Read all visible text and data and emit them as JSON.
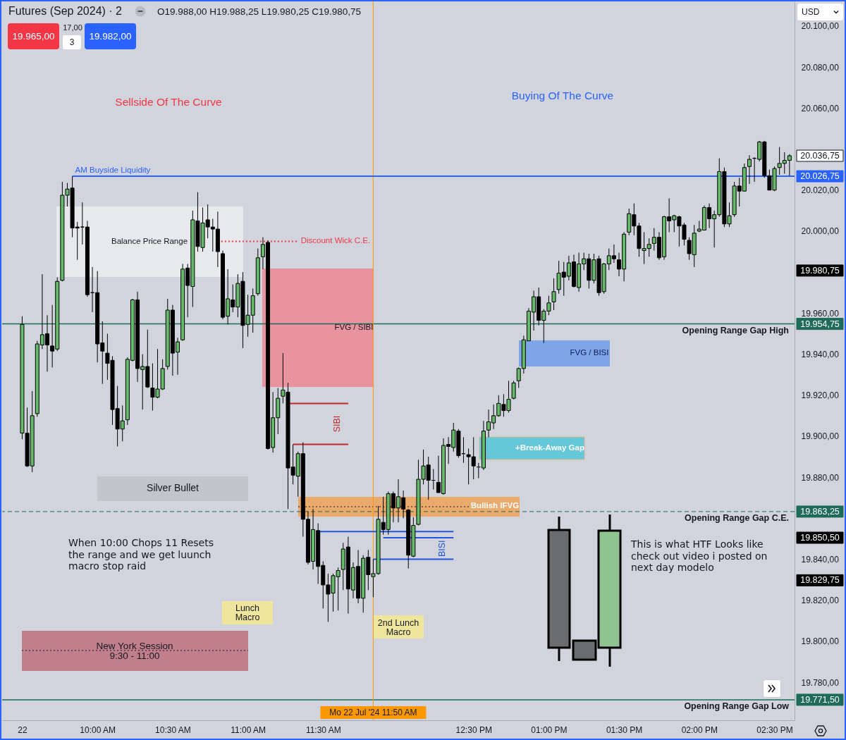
{
  "chart_data": {
    "type": "candlestick",
    "title": "Futures (Sep 2024) · 2",
    "subtitle": "O19.988,00 H19.988,25 L19.980,25 C19.980,75",
    "x": [
      "2024-07-22T09:30",
      "2024-07-22T09:32",
      "2024-07-22T09:34",
      "2024-07-22T09:36",
      "2024-07-22T09:38",
      "2024-07-22T09:40",
      "2024-07-22T09:42",
      "2024-07-22T09:44",
      "2024-07-22T09:46",
      "2024-07-22T09:48",
      "2024-07-22T09:50",
      "2024-07-22T09:52",
      "2024-07-22T09:54",
      "2024-07-22T09:56",
      "2024-07-22T09:58",
      "2024-07-22T10:00",
      "2024-07-22T10:02",
      "2024-07-22T10:04",
      "2024-07-22T10:06",
      "2024-07-22T10:08",
      "2024-07-22T10:10",
      "2024-07-22T10:12",
      "2024-07-22T10:14",
      "2024-07-22T10:16",
      "2024-07-22T10:18",
      "2024-07-22T10:20",
      "2024-07-22T10:22",
      "2024-07-22T10:24",
      "2024-07-22T10:26",
      "2024-07-22T10:28",
      "2024-07-22T10:30",
      "2024-07-22T10:32",
      "2024-07-22T10:34",
      "2024-07-22T10:36",
      "2024-07-22T10:38",
      "2024-07-22T10:40",
      "2024-07-22T10:42",
      "2024-07-22T10:44",
      "2024-07-22T10:46",
      "2024-07-22T10:48",
      "2024-07-22T10:50",
      "2024-07-22T10:52",
      "2024-07-22T10:54",
      "2024-07-22T10:56",
      "2024-07-22T10:58",
      "2024-07-22T11:00",
      "2024-07-22T11:02",
      "2024-07-22T11:04",
      "2024-07-22T11:06",
      "2024-07-22T11:08",
      "2024-07-22T11:10",
      "2024-07-22T11:12",
      "2024-07-22T11:14",
      "2024-07-22T11:16",
      "2024-07-22T11:18",
      "2024-07-22T11:20",
      "2024-07-22T11:22",
      "2024-07-22T11:24",
      "2024-07-22T11:26",
      "2024-07-22T11:28",
      "2024-07-22T11:30",
      "2024-07-22T11:32",
      "2024-07-22T11:34",
      "2024-07-22T11:36",
      "2024-07-22T11:38",
      "2024-07-22T11:40",
      "2024-07-22T11:42",
      "2024-07-22T11:44",
      "2024-07-22T11:46",
      "2024-07-22T11:48",
      "2024-07-22T11:50",
      "2024-07-22T11:52",
      "2024-07-22T11:54",
      "2024-07-22T11:56",
      "2024-07-22T11:58",
      "2024-07-22T12:00",
      "2024-07-22T12:02",
      "2024-07-22T12:04",
      "2024-07-22T12:06",
      "2024-07-22T12:08",
      "2024-07-22T12:10",
      "2024-07-22T12:12",
      "2024-07-22T12:14",
      "2024-07-22T12:16",
      "2024-07-22T12:18",
      "2024-07-22T12:20",
      "2024-07-22T12:22",
      "2024-07-22T12:24",
      "2024-07-22T12:26",
      "2024-07-22T12:28",
      "2024-07-22T12:30",
      "2024-07-22T12:32",
      "2024-07-22T12:34",
      "2024-07-22T12:36",
      "2024-07-22T12:38",
      "2024-07-22T12:40",
      "2024-07-22T12:42",
      "2024-07-22T12:44",
      "2024-07-22T12:46",
      "2024-07-22T12:48",
      "2024-07-22T12:50",
      "2024-07-22T12:52",
      "2024-07-22T12:54",
      "2024-07-22T12:56",
      "2024-07-22T12:58",
      "2024-07-22T13:00",
      "2024-07-22T13:02",
      "2024-07-22T13:04",
      "2024-07-22T13:06",
      "2024-07-22T13:08",
      "2024-07-22T13:10",
      "2024-07-22T13:12",
      "2024-07-22T13:14",
      "2024-07-22T13:16",
      "2024-07-22T13:18",
      "2024-07-22T13:20",
      "2024-07-22T13:22",
      "2024-07-22T13:24",
      "2024-07-22T13:26",
      "2024-07-22T13:28",
      "2024-07-22T13:30",
      "2024-07-22T13:32",
      "2024-07-22T13:34",
      "2024-07-22T13:36",
      "2024-07-22T13:38",
      "2024-07-22T13:40",
      "2024-07-22T13:42",
      "2024-07-22T13:44",
      "2024-07-22T13:46",
      "2024-07-22T13:48",
      "2024-07-22T13:50",
      "2024-07-22T13:52",
      "2024-07-22T13:54",
      "2024-07-22T13:56",
      "2024-07-22T13:58",
      "2024-07-22T14:00",
      "2024-07-22T14:02",
      "2024-07-22T14:04",
      "2024-07-22T14:06",
      "2024-07-22T14:08",
      "2024-07-22T14:10",
      "2024-07-22T14:12",
      "2024-07-22T14:14",
      "2024-07-22T14:16",
      "2024-07-22T14:18",
      "2024-07-22T14:20",
      "2024-07-22T14:22",
      "2024-07-22T14:24",
      "2024-07-22T14:26",
      "2024-07-22T14:28",
      "2024-07-22T14:30",
      "2024-07-22T14:32",
      "2024-07-22T14:34",
      "2024-07-22T14:36"
    ],
    "ohlc": [
      [
        19901.5,
        19958.5,
        19898.5,
        19954.5
      ],
      [
        19901.5,
        19914,
        19885,
        19885.5
      ],
      [
        19885.5,
        19922,
        19882.5,
        19910
      ],
      [
        19911,
        19946.5,
        19909.5,
        19945
      ],
      [
        19944.5,
        19979,
        19942.5,
        19949.5
      ],
      [
        19950,
        19959,
        19931.5,
        19944.5
      ],
      [
        19944,
        19964,
        19933.5,
        19941.5
      ],
      [
        19942.5,
        19977.5,
        19941.5,
        19975.5
      ],
      [
        19976,
        20024,
        19975.5,
        20017.5
      ],
      [
        20017.5,
        20023.5,
        20012,
        20020.5
      ],
      [
        20021,
        20026.75,
        19997,
        20001.5
      ],
      [
        20002,
        20004.5,
        19986,
        20001.5
      ],
      [
        20002,
        20014,
        19993.5,
        20002
      ],
      [
        20002,
        20005,
        19968,
        19969
      ],
      [
        19970,
        19982.5,
        19960.5,
        19970
      ],
      [
        19970,
        19980.5,
        19936,
        19945
      ],
      [
        19945.5,
        19956,
        19925.5,
        19941.5
      ],
      [
        19940.5,
        19950,
        19927.5,
        19935.5
      ],
      [
        19937,
        19939,
        19905.5,
        19913
      ],
      [
        19913.5,
        19924.5,
        19895,
        19903.5
      ],
      [
        19903.5,
        19915,
        19897.5,
        19907.5
      ],
      [
        19908,
        19938.5,
        19905.5,
        19937.5
      ],
      [
        19937,
        19967,
        19936.5,
        19966.5
      ],
      [
        19966.5,
        19970.5,
        19926.5,
        19933
      ],
      [
        19932.5,
        19940,
        19913,
        19934
      ],
      [
        19934,
        19952,
        19923.5,
        19924
      ],
      [
        19923.5,
        19935.5,
        19912.5,
        19919
      ],
      [
        19919,
        19942.5,
        19918.5,
        19923
      ],
      [
        19923,
        19937.5,
        19922.5,
        19933
      ],
      [
        19934,
        19967,
        19932.5,
        19961.5
      ],
      [
        19961.5,
        19964,
        19929.5,
        19940.5
      ],
      [
        19941,
        19948,
        19930,
        19946
      ],
      [
        19947,
        19984,
        19946.5,
        19981.5
      ],
      [
        19982,
        19984,
        19958,
        19973.5
      ],
      [
        19973,
        20010,
        19963,
        20005.5
      ],
      [
        20005,
        20019,
        19990,
        19992.5
      ],
      [
        19992,
        20011.5,
        19990,
        20004
      ],
      [
        20005.5,
        20013,
        19996.5,
        20002
      ],
      [
        20002,
        20006,
        19990,
        20001
      ],
      [
        20001,
        20009.5,
        19982.5,
        19990
      ],
      [
        19989,
        19990.5,
        19957,
        19958
      ],
      [
        19958.5,
        19981.5,
        19954.5,
        19967
      ],
      [
        19966.5,
        19974,
        19960.5,
        19963
      ],
      [
        19963,
        19979,
        19958,
        19974.5
      ],
      [
        19975.5,
        19980,
        19943,
        19954
      ],
      [
        19954.5,
        19969,
        19948.5,
        19959
      ],
      [
        19959,
        19972,
        19950.5,
        19968.5
      ],
      [
        19969.5,
        19991.5,
        19968.5,
        19987
      ],
      [
        19987.5,
        19997,
        19981.5,
        19993.5
      ],
      [
        19994.5,
        19995.5,
        19893.5,
        19894
      ],
      [
        19894.5,
        19921.5,
        19892,
        19909
      ],
      [
        19909,
        19923.5,
        19901,
        19918.5
      ],
      [
        19919.5,
        19940.5,
        19916,
        19922.5
      ],
      [
        19921.5,
        19926,
        19864.5,
        19884.5
      ],
      [
        19885,
        19896,
        19876.5,
        19881
      ],
      [
        19880.5,
        19892.5,
        19870.5,
        19891.5
      ],
      [
        19891.5,
        19897,
        19851,
        19859.5
      ],
      [
        19859.5,
        19863.5,
        19837.5,
        19838.5
      ],
      [
        19839,
        19864.5,
        19835,
        19854.5
      ],
      [
        19854,
        19857.5,
        19828,
        19836.5
      ],
      [
        19837,
        19839,
        19816,
        19827.5
      ],
      [
        19827.5,
        19833,
        19809.5,
        19823
      ],
      [
        19823.5,
        19833,
        19814.5,
        19832
      ],
      [
        19831.5,
        19836,
        19815,
        19834.5
      ],
      [
        19835,
        19848,
        19825,
        19845
      ],
      [
        19846,
        19851,
        19813.5,
        19825.5
      ],
      [
        19825,
        19838.5,
        19821,
        19836
      ],
      [
        19836.5,
        19844.5,
        19818.5,
        19821
      ],
      [
        19821,
        19842,
        19814,
        19840.5
      ],
      [
        19841,
        19844.5,
        19825,
        19832.5
      ],
      [
        19831.5,
        19840,
        19821.5,
        19833
      ],
      [
        19833,
        19866,
        19832.5,
        19859.5
      ],
      [
        19858,
        19870.5,
        19852,
        19854.5
      ],
      [
        19854.5,
        19873,
        19852,
        19872
      ],
      [
        19872,
        19873,
        19858,
        19865
      ],
      [
        19865,
        19879,
        19858,
        19870.5
      ],
      [
        19870,
        19873.5,
        19860,
        19864.5
      ],
      [
        19864,
        19864.5,
        19835.5,
        19842
      ],
      [
        19841.5,
        19860.5,
        19841,
        19856.5
      ],
      [
        19857,
        19888.5,
        19856.5,
        19879
      ],
      [
        19879,
        19893.5,
        19876.5,
        19885.5
      ],
      [
        19886,
        19890,
        19869,
        19878.5
      ],
      [
        19878.5,
        19884,
        19874,
        19878.5
      ],
      [
        19877.5,
        19890.5,
        19872.5,
        19872.5
      ],
      [
        19872,
        19899,
        19871.5,
        19895.5
      ],
      [
        19896,
        19899.5,
        19886.5,
        19895
      ],
      [
        19894.5,
        19906.5,
        19892.5,
        19903
      ],
      [
        19902.5,
        19903.5,
        19889.5,
        19890.5
      ],
      [
        19891.5,
        19899.5,
        19887,
        19891.5
      ],
      [
        19891,
        19894,
        19876.5,
        19890
      ],
      [
        19890,
        19899.5,
        19879,
        19885.5
      ],
      [
        19885,
        19887,
        19879.5,
        19885
      ],
      [
        19884.5,
        19907.5,
        19883.5,
        19902.5
      ],
      [
        19903,
        19913,
        19899.5,
        19907
      ],
      [
        19906.5,
        19915.5,
        19903.5,
        19910
      ],
      [
        19910,
        19920,
        19909.5,
        19916
      ],
      [
        19915.5,
        19920.5,
        19909.5,
        19912.5
      ],
      [
        19912.5,
        19927,
        19911.5,
        19918
      ],
      [
        19918.5,
        19927,
        19918,
        19926
      ],
      [
        19927,
        19933.5,
        19923.5,
        19933
      ],
      [
        19933,
        19949,
        19930.5,
        19947
      ],
      [
        19946.5,
        19962.5,
        19946.5,
        19961
      ],
      [
        19960.5,
        19971,
        19951.5,
        19968
      ],
      [
        19968,
        19972.5,
        19954,
        19956.5
      ],
      [
        19956.5,
        19962,
        19945.5,
        19961
      ],
      [
        19961,
        19968.5,
        19959,
        19965
      ],
      [
        19965.5,
        19977,
        19961.5,
        19970.5
      ],
      [
        19971.5,
        19985.5,
        19969.5,
        19979.5
      ],
      [
        19980,
        19985,
        19968.5,
        19977.5
      ],
      [
        19978,
        19988,
        19976,
        19984.5
      ],
      [
        19985,
        19988.5,
        19972.5,
        19973
      ],
      [
        19972.5,
        19989.5,
        19970.5,
        19984
      ],
      [
        19984,
        19989.5,
        19981,
        19986.5
      ],
      [
        19986.5,
        19989,
        19972,
        19976
      ],
      [
        19976,
        19989,
        19974.5,
        19986
      ],
      [
        19986.5,
        19988,
        19968.5,
        19970
      ],
      [
        19970.5,
        19984.5,
        19969.5,
        19984
      ],
      [
        19984,
        19991.5,
        19981,
        19988
      ],
      [
        19988,
        19993.5,
        19984.5,
        19986.5
      ],
      [
        19986,
        19989.5,
        19978,
        19981.5
      ],
      [
        19981.5,
        19999.5,
        19975.5,
        19998.5
      ],
      [
        19999.5,
        20011,
        19998,
        20008.5
      ],
      [
        20008,
        20013.5,
        19998,
        20002.5
      ],
      [
        20002.5,
        20004,
        19987.5,
        19991.5
      ],
      [
        19990.5,
        19999.5,
        19984,
        19991.5
      ],
      [
        19991.5,
        19996.5,
        19987.5,
        19993.5
      ],
      [
        19994,
        20001.5,
        19990.5,
        19997
      ],
      [
        19997,
        19999.5,
        19986,
        19987
      ],
      [
        19987.5,
        20007.5,
        19986,
        20007
      ],
      [
        20007,
        20016,
        19999.5,
        20005
      ],
      [
        20005.5,
        20008,
        19999.5,
        20007.5
      ],
      [
        20007,
        20007.5,
        19992.5,
        20002.5
      ],
      [
        20003,
        20004,
        19993,
        19996
      ],
      [
        19995.5,
        19997,
        19986,
        19989
      ],
      [
        19988.5,
        20003,
        19982.5,
        19999
      ],
      [
        20000,
        20005,
        19999.5,
        20001
      ],
      [
        20000.5,
        20012.5,
        20000.5,
        20011.5
      ],
      [
        20011.5,
        20013.5,
        20001.5,
        20006
      ],
      [
        20006,
        20010,
        19992,
        20008
      ],
      [
        20008,
        20035.5,
        20007,
        20029
      ],
      [
        20029,
        20031,
        20002,
        20003.5
      ],
      [
        20003.5,
        20014,
        20002,
        20007.5
      ],
      [
        20008,
        20024,
        20007,
        20022
      ],
      [
        20022,
        20026,
        20012,
        20019.5
      ],
      [
        20019.5,
        20033,
        20019.5,
        20031
      ],
      [
        20031.5,
        20037,
        20023,
        20035
      ],
      [
        20035.5,
        20036,
        20024,
        20035.5
      ],
      [
        20035,
        20044,
        20034,
        20043.5
      ],
      [
        20043.5,
        20044,
        20026,
        20027
      ],
      [
        20027,
        20030,
        20020,
        20020
      ],
      [
        20020,
        20031.5,
        20019.5,
        20030.5
      ],
      [
        20031,
        20041,
        20027.5,
        20033
      ],
      [
        20033,
        20038.5,
        20028,
        20034.5
      ],
      [
        20034.5,
        20037.5,
        20027,
        20036.75
      ]
    ],
    "colors": [
      "#66bb6a",
      "#000000",
      "#66bb6a",
      "#66bb6a",
      "#66bb6a",
      "#000000",
      "#000000",
      "#66bb6a",
      "#66bb6a",
      "#66bb6a",
      "#000000",
      "#000000",
      "#000000",
      "#000000",
      "#000000",
      "#000000",
      "#000000",
      "#000000",
      "#000000",
      "#000000",
      "#66bb6a",
      "#66bb6a",
      "#66bb6a",
      "#000000",
      "#66bb6a",
      "#000000",
      "#000000",
      "#66bb6a",
      "#66bb6a",
      "#66bb6a",
      "#000000",
      "#66bb6a",
      "#66bb6a",
      "#000000",
      "#66bb6a",
      "#000000",
      "#66bb6a",
      "#000000",
      "#000000",
      "#000000",
      "#000000",
      "#66bb6a",
      "#000000",
      "#66bb6a",
      "#000000",
      "#66bb6a",
      "#66bb6a",
      "#66bb6a",
      "#66bb6a",
      "#000000",
      "#66bb6a",
      "#66bb6a",
      "#66bb6a",
      "#000000",
      "#000000",
      "#66bb6a",
      "#000000",
      "#000000",
      "#66bb6a",
      "#000000",
      "#000000",
      "#000000",
      "#66bb6a",
      "#66bb6a",
      "#66bb6a",
      "#000000",
      "#66bb6a",
      "#000000",
      "#66bb6a",
      "#000000",
      "#66bb6a",
      "#66bb6a",
      "#000000",
      "#66bb6a",
      "#000000",
      "#66bb6a",
      "#000000",
      "#000000",
      "#66bb6a",
      "#66bb6a",
      "#66bb6a",
      "#000000",
      "#000000",
      "#000000",
      "#66bb6a",
      "#000000",
      "#66bb6a",
      "#000000",
      "#000000",
      "#000000",
      "#000000",
      "#000000",
      "#66bb6a",
      "#66bb6a",
      "#66bb6a",
      "#66bb6a",
      "#000000",
      "#66bb6a",
      "#66bb6a",
      "#66bb6a",
      "#66bb6a",
      "#66bb6a",
      "#66bb6a",
      "#000000",
      "#66bb6a",
      "#66bb6a",
      "#66bb6a",
      "#66bb6a",
      "#000000",
      "#66bb6a",
      "#000000",
      "#66bb6a",
      "#66bb6a",
      "#000000",
      "#66bb6a",
      "#000000",
      "#66bb6a",
      "#66bb6a",
      "#000000",
      "#000000",
      "#66bb6a",
      "#66bb6a",
      "#000000",
      "#000000",
      "#66bb6a",
      "#66bb6a",
      "#66bb6a",
      "#000000",
      "#66bb6a",
      "#000000",
      "#66bb6a",
      "#000000",
      "#000000",
      "#000000",
      "#66bb6a",
      "#66bb6a",
      "#66bb6a",
      "#000000",
      "#66bb6a",
      "#66bb6a",
      "#000000",
      "#66bb6a",
      "#66bb6a",
      "#000000",
      "#66bb6a",
      "#66bb6a",
      "#000000",
      "#66bb6a",
      "#000000",
      "#000000",
      "#66bb6a",
      "#66bb6a",
      "#66bb6a",
      "#66bb6a"
    ],
    "series": [
      {
        "type": "line",
        "name": "AM Buyside Liquidity",
        "color": "#2962ff",
        "x": [
          "2024-07-22T09:50",
          "2024-07-22T14:38"
        ],
        "values": [
          20026.75,
          20026.75
        ]
      },
      {
        "type": "line",
        "name": "Discount Wick C.E.",
        "color": "#f23645",
        "line_style": "dotted",
        "x": [
          "2024-07-22T10:48",
          "2024-07-22T11:20"
        ],
        "values": [
          19995,
          19995
        ]
      },
      {
        "type": "line",
        "name": "SIBI",
        "color": "#c0282d",
        "x": [
          "2024-07-22T11:16",
          "2024-07-22T11:40",
          null,
          "2024-07-22T11:18",
          "2024-07-22T11:40"
        ],
        "values": [
          19916,
          19916,
          null,
          19896,
          19896
        ]
      },
      {
        "type": "line",
        "name": "BISI",
        "color": "#2156e0",
        "x": [
          "2024-07-22T11:28",
          "2024-07-22T12:22",
          null,
          "2024-07-22T11:54",
          "2024-07-22T12:22",
          null,
          "2024-07-22T11:50",
          "2024-07-22T12:22"
        ],
        "values": [
          19853.5,
          19853.5,
          null,
          19850.5,
          19850.5,
          null,
          19840,
          19840
        ]
      }
    ],
    "ref_lines": [
      {
        "axis": "y",
        "value": 19954.75,
        "label": "Opening Range Gap High",
        "color": "#1d6b58"
      },
      {
        "axis": "y",
        "value": 19863.25,
        "label": "Opening Range Gap C.E.",
        "color": "#1d6b58",
        "line_style": "dashed"
      },
      {
        "axis": "y",
        "value": 19771.5,
        "label": "Opening Range Gap Low",
        "color": "#1d6b58"
      },
      {
        "axis": "x",
        "value": "2024-07-22T11:50",
        "label": "Mo 22 Jul '24 11:50 AM",
        "color": "#ff9800"
      }
    ],
    "annotations": [
      "Sellside Of The Curve",
      "Buying Of The Curve",
      "Balance Price Range",
      "FVG / SIBI",
      "FVG / BISI",
      "+Break-Away Gap",
      "Bullish IFVG",
      "Silver Bullet",
      "Lunch\nMacro",
      "2nd Lunch\nMacro",
      "New York Session\n9:30 - 11:00",
      "When 10:00 Chops 11 Resets\nthe range and we get luunch\nmacro stop raid",
      "This is what HTF Looks like\ncheck out video i posted on\nnext day modelo",
      "20.036,75",
      "20.026,75",
      "19.980,75",
      "19.954,75",
      "19.863,25",
      "19.850,50",
      "19.829,75",
      "19.771,50",
      "19.965,00",
      "17,00",
      "3",
      "19.982,00",
      "USD"
    ],
    "xlim": [
      "2024-07-22T09:22",
      "2024-07-22T14:38"
    ],
    "xticks": [
      {
        "value": "2024-07-22T09:30",
        "label": "22"
      },
      {
        "value": "2024-07-22T10:00",
        "label": "10:00 AM"
      },
      {
        "value": "2024-07-22T10:30",
        "label": "10:30 AM"
      },
      {
        "value": "2024-07-22T11:00",
        "label": "11:00 AM"
      },
      {
        "value": "2024-07-22T11:30",
        "label": "11:30 AM"
      },
      {
        "value": "2024-07-22T12:30",
        "label": "12:30 PM"
      },
      {
        "value": "2024-07-22T13:00",
        "label": "01:00 PM"
      },
      {
        "value": "2024-07-22T13:30",
        "label": "01:30 PM"
      },
      {
        "value": "2024-07-22T14:00",
        "label": "02:00 PM"
      },
      {
        "value": "2024-07-22T14:30",
        "label": "02:30 PM"
      }
    ],
    "ylim": [
      19761.5,
      20112
    ],
    "yticks": [
      {
        "value": 19780,
        "label": "19.780,00"
      },
      {
        "value": 19800,
        "label": "19.800,00"
      },
      {
        "value": 19820,
        "label": "19.820,00"
      },
      {
        "value": 19840,
        "label": "19.840,00"
      },
      {
        "value": 19880,
        "label": "19.880,00"
      },
      {
        "value": 19900,
        "label": "19.900,00"
      },
      {
        "value": 19920,
        "label": "19.920,00"
      },
      {
        "value": 19940,
        "label": "19.940,00"
      },
      {
        "value": 19960,
        "label": "19.960,00"
      },
      {
        "value": 20000,
        "label": "20.000,00"
      },
      {
        "value": 20020,
        "label": "20.020,00"
      },
      {
        "value": 20060,
        "label": "20.060,00"
      },
      {
        "value": 20080,
        "label": "20.080,00"
      },
      {
        "value": 20100,
        "label": "20.100,00"
      }
    ]
  }
}
